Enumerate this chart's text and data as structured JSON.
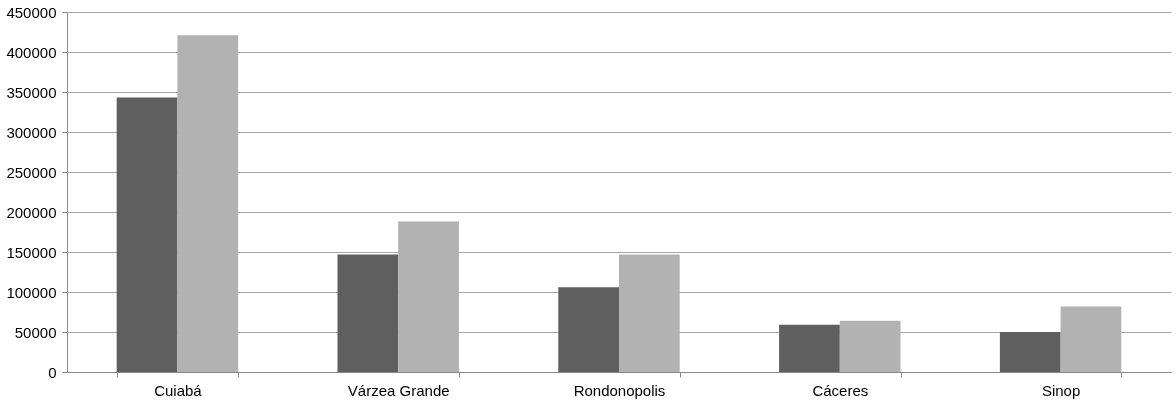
{
  "chart_data": {
    "type": "bar",
    "categories": [
      "Cuiabá",
      "Várzea Grande",
      "Rondonopolis",
      "Cáceres",
      "Sinop"
    ],
    "series": [
      {
        "color": "#5f5f5f",
        "values": [
          343000,
          147000,
          106000,
          59000,
          50000
        ]
      },
      {
        "color": "#b2b2b2",
        "values": [
          421000,
          188000,
          147000,
          64000,
          82000
        ]
      }
    ],
    "ylim": [
      0,
      450000
    ],
    "yticks": [
      0,
      50000,
      100000,
      150000,
      200000,
      250000,
      300000,
      350000,
      400000,
      450000
    ],
    "grid": "y",
    "legend": false
  }
}
